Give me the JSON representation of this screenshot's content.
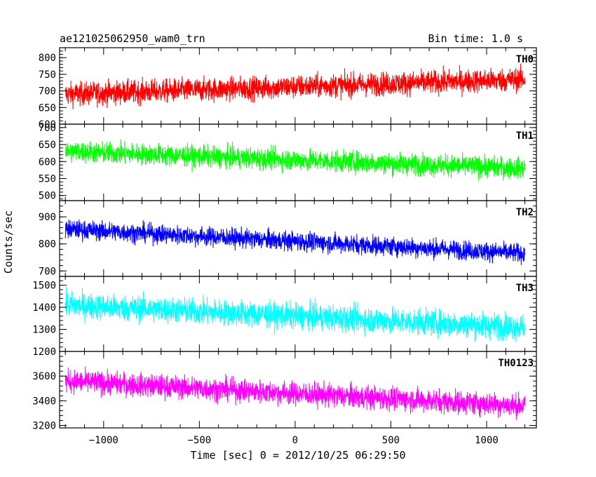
{
  "header": {
    "title": "ae121025062950_wam0_trn",
    "bin_time": "Bin time: 1.0 s"
  },
  "chart_data": {
    "type": "line",
    "xlabel": "Time [sec] 0 = 2012/10/25 06:29:50",
    "ylabel": "Counts/sec",
    "xlim": [
      -1230,
      1260
    ],
    "x_start": -1200,
    "x_end": 1200,
    "x_ticks": [
      -1000,
      -500,
      0,
      500,
      1000
    ],
    "x_tick_labels": [
      "−1000",
      "−500",
      "0",
      "500",
      "1000"
    ],
    "panels": [
      {
        "name": "TH0",
        "color": "#ff0000",
        "ylim": [
          600,
          830
        ],
        "y_ticks": [
          600,
          650,
          700,
          750,
          800
        ],
        "y_tick_labels": [
          "600",
          "650",
          "700",
          "750",
          "800"
        ],
        "trend_start": 690,
        "trend_end": 735,
        "spread": 45
      },
      {
        "name": "TH1",
        "color": "#00ff00",
        "ylim": [
          485,
          710
        ],
        "y_ticks": [
          500,
          550,
          600,
          650,
          700
        ],
        "y_tick_labels": [
          "500",
          "550",
          "600",
          "650",
          "700"
        ],
        "trend_start": 630,
        "trend_end": 580,
        "spread": 40
      },
      {
        "name": "TH2",
        "color": "#0000ff",
        "ylim": [
          680,
          960
        ],
        "y_ticks": [
          700,
          800,
          900
        ],
        "y_tick_labels": [
          "700",
          "800",
          "900"
        ],
        "trend_start": 855,
        "trend_end": 765,
        "spread": 45
      },
      {
        "name": "TH3",
        "color": "#00ffff",
        "ylim": [
          1200,
          1540
        ],
        "y_ticks": [
          1200,
          1300,
          1400,
          1500
        ],
        "y_tick_labels": [
          "1200",
          "1300",
          "1400",
          "1500"
        ],
        "trend_start": 1410,
        "trend_end": 1310,
        "spread": 75
      },
      {
        "name": "TH0123",
        "color": "#ff00ff",
        "ylim": [
          3180,
          3800
        ],
        "y_ticks": [
          3200,
          3400,
          3600
        ],
        "y_tick_labels": [
          "3200",
          "3400",
          "3600"
        ],
        "trend_start": 3560,
        "trend_end": 3360,
        "spread": 120
      }
    ]
  }
}
